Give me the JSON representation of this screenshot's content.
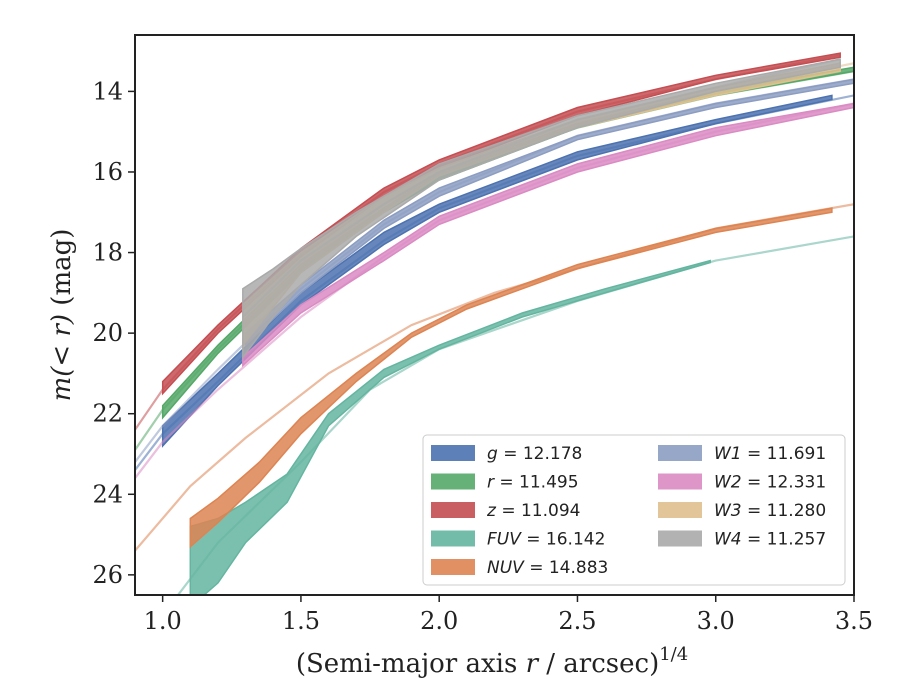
{
  "chart_data": {
    "type": "line",
    "xlabel_text": "(Semi-major axis ",
    "xlabel_var": "r",
    "xlabel_unit": " / arcsec)",
    "xlabel_exp": "1/4",
    "ylabel_prefix": "m",
    "ylabel_inner": "(< r)",
    "ylabel_unit": " (mag)",
    "xlim": [
      0.9,
      3.5
    ],
    "ylim": [
      26.5,
      12.6
    ],
    "y_inverted": true,
    "xticks": [
      1.0,
      1.5,
      2.0,
      2.5,
      3.0,
      3.5
    ],
    "xtick_labels": [
      "1.0",
      "1.5",
      "2.0",
      "2.5",
      "3.0",
      "3.5"
    ],
    "yticks": [
      14,
      16,
      18,
      20,
      22,
      24,
      26
    ],
    "ytick_labels": [
      "14",
      "16",
      "18",
      "20",
      "22",
      "24",
      "26"
    ],
    "legend_position": "lower-right",
    "series": [
      {
        "name": "g",
        "value": "12.178",
        "color": "#4c72b0",
        "x": [
          0.9,
          1.0,
          1.2,
          1.5,
          1.8,
          2.0,
          2.5,
          3.0,
          3.5
        ],
        "y": [
          23.4,
          22.5,
          21.2,
          19.2,
          17.7,
          16.9,
          15.6,
          14.8,
          14.1
        ],
        "x_band": [
          1.0,
          1.2,
          1.5,
          1.8,
          2.0,
          2.5,
          3.0,
          3.42
        ],
        "lo_band": [
          22.3,
          21.0,
          19.0,
          17.5,
          16.8,
          15.5,
          14.7,
          14.1
        ],
        "hi_band": [
          22.8,
          21.3,
          19.3,
          17.8,
          17.0,
          15.7,
          14.8,
          14.2
        ]
      },
      {
        "name": "r",
        "value": "11.495",
        "color": "#55a868",
        "x": [
          0.9,
          1.0,
          1.2,
          1.5,
          1.8,
          2.0,
          2.5,
          3.0,
          3.5
        ],
        "y": [
          22.9,
          21.9,
          20.4,
          18.4,
          16.9,
          16.1,
          14.9,
          14.1,
          13.5
        ],
        "x_band": [
          1.0,
          1.2,
          1.5,
          1.8,
          2.0,
          2.5,
          3.0,
          3.5
        ],
        "lo_band": [
          21.8,
          20.3,
          18.3,
          16.9,
          16.0,
          14.8,
          14.0,
          13.4
        ],
        "hi_band": [
          22.1,
          20.5,
          18.5,
          17.0,
          16.2,
          14.9,
          14.1,
          13.5
        ]
      },
      {
        "name": "z",
        "value": "11.094",
        "color": "#c44e52",
        "x": [
          0.9,
          1.0,
          1.2,
          1.5,
          1.8,
          2.0,
          2.5,
          3.0,
          3.45
        ],
        "y": [
          22.4,
          21.4,
          19.9,
          18.0,
          16.5,
          15.8,
          14.5,
          13.7,
          13.1
        ],
        "x_band": [
          1.0,
          1.2,
          1.5,
          1.8,
          2.0,
          2.5,
          3.0,
          3.45
        ],
        "lo_band": [
          21.2,
          19.8,
          17.9,
          16.4,
          15.7,
          14.4,
          13.6,
          13.05
        ],
        "hi_band": [
          21.5,
          20.0,
          18.1,
          16.6,
          15.9,
          14.6,
          13.7,
          13.15
        ]
      },
      {
        "name": "FUV",
        "value": "16.142",
        "color": "#64b5a0",
        "x": [
          1.0,
          1.2,
          1.5,
          1.75,
          2.0,
          2.5,
          3.0,
          3.5
        ],
        "y": [
          27.0,
          25.2,
          23.2,
          21.4,
          20.4,
          19.2,
          18.2,
          17.6
        ],
        "x_band": [
          1.1,
          1.2,
          1.3,
          1.45,
          1.6,
          1.8,
          2.0,
          2.3,
          2.6,
          2.98
        ],
        "lo_band": [
          24.8,
          24.6,
          24.2,
          23.5,
          22.0,
          20.9,
          20.3,
          19.5,
          18.9,
          18.2
        ],
        "hi_band": [
          26.8,
          26.2,
          25.2,
          24.2,
          22.3,
          21.1,
          20.4,
          19.6,
          19.0,
          18.25
        ]
      },
      {
        "name": "NUV",
        "value": "14.883",
        "color": "#dd8452",
        "x": [
          0.9,
          1.1,
          1.3,
          1.6,
          1.9,
          2.2,
          2.6,
          3.0,
          3.5
        ],
        "y": [
          25.4,
          23.8,
          22.6,
          21.0,
          19.8,
          19.0,
          18.2,
          17.4,
          16.8
        ],
        "x_band": [
          1.1,
          1.2,
          1.35,
          1.5,
          1.7,
          1.9,
          2.1,
          2.5,
          3.0,
          3.42
        ],
        "lo_band": [
          24.6,
          24.1,
          23.2,
          22.1,
          21.0,
          20.0,
          19.3,
          18.3,
          17.4,
          16.9
        ],
        "hi_band": [
          25.3,
          24.7,
          23.7,
          22.5,
          21.2,
          20.1,
          19.4,
          18.4,
          17.5,
          17.0
        ]
      },
      {
        "name": "W1",
        "value": "11.691",
        "color": "#8c9dc2",
        "x": [
          0.9,
          1.0,
          1.2,
          1.5,
          1.8,
          2.0,
          2.5,
          3.0,
          3.5
        ],
        "y": [
          23.2,
          22.3,
          20.9,
          18.9,
          17.3,
          16.5,
          15.1,
          14.3,
          13.7
        ],
        "x_band": [
          1.3,
          1.5,
          1.8,
          2.0,
          2.5,
          3.0,
          3.5
        ],
        "lo_band": [
          20.0,
          18.8,
          17.2,
          16.4,
          15.1,
          14.3,
          13.7
        ],
        "hi_band": [
          20.3,
          19.0,
          17.4,
          16.6,
          15.2,
          14.4,
          13.8
        ]
      },
      {
        "name": "W2",
        "value": "12.331",
        "color": "#da8bc3",
        "x": [
          0.9,
          1.0,
          1.2,
          1.5,
          1.8,
          2.0,
          2.5,
          3.0,
          3.5
        ],
        "y": [
          23.6,
          22.7,
          21.4,
          19.6,
          18.1,
          17.2,
          15.9,
          15.0,
          14.3
        ],
        "x_band": [
          1.29,
          1.5,
          1.8,
          2.0,
          2.5,
          3.0,
          3.5
        ],
        "lo_band": [
          20.6,
          19.3,
          18.0,
          17.1,
          15.8,
          14.9,
          14.3
        ],
        "hi_band": [
          20.8,
          19.5,
          18.2,
          17.3,
          16.0,
          15.1,
          14.4
        ]
      },
      {
        "name": "W3",
        "value": "11.280",
        "color": "#dfc08f",
        "x": [
          1.29,
          1.5,
          1.8,
          2.0,
          2.5,
          3.0,
          3.5
        ],
        "y": [
          19.8,
          18.3,
          16.8,
          16.0,
          14.8,
          14.0,
          13.3
        ],
        "x_band": [
          1.29,
          1.5,
          1.8,
          2.0,
          2.5,
          3.0,
          3.45
        ],
        "lo_band": [
          19.3,
          18.0,
          16.6,
          15.9,
          14.7,
          13.9,
          13.3
        ],
        "hi_band": [
          20.3,
          18.5,
          17.0,
          16.1,
          14.9,
          14.1,
          13.5
        ]
      },
      {
        "name": "W4",
        "value": "11.257",
        "color": "#aaaaaa",
        "x": [
          1.29,
          1.5,
          1.8,
          2.0,
          2.5,
          3.0,
          3.45
        ],
        "y": [
          19.6,
          18.2,
          16.8,
          16.0,
          14.7,
          13.9,
          13.2
        ],
        "x_band": [
          1.29,
          1.4,
          1.5,
          1.7,
          2.0,
          2.5,
          3.0,
          3.45
        ],
        "lo_band": [
          18.9,
          18.4,
          17.9,
          17.0,
          15.8,
          14.6,
          13.8,
          13.2
        ],
        "hi_band": [
          20.6,
          19.6,
          18.8,
          17.6,
          16.2,
          14.9,
          14.0,
          13.4
        ]
      }
    ]
  }
}
